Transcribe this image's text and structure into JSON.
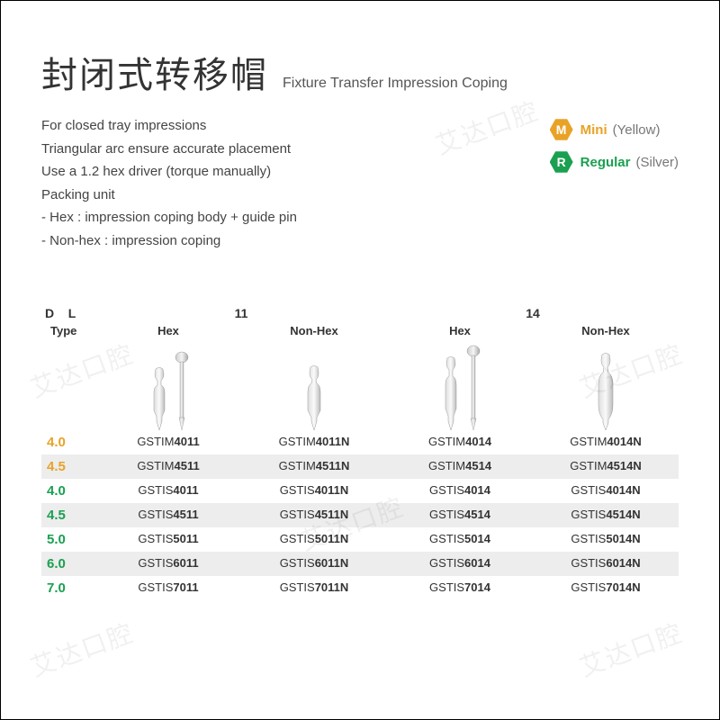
{
  "header": {
    "title_cn": "封闭式转移帽",
    "title_en": "Fixture Transfer Impression Coping"
  },
  "description": [
    "For closed tray impressions",
    "Triangular arc ensure accurate placement",
    "Use a 1.2 hex driver (torque manually)",
    "Packing unit",
    "- Hex : impression coping body + guide pin",
    "- Non-hex : impression coping"
  ],
  "legend": [
    {
      "letter": "M",
      "bg": "#e9a227",
      "label": "Mini",
      "label_color": "#e9a227",
      "note": "(Yellow)"
    },
    {
      "letter": "R",
      "bg": "#1aa050",
      "label": "Regular",
      "label_color": "#1aa050",
      "note": "(Silver)"
    }
  ],
  "table": {
    "d_label": "D",
    "l_label": "L",
    "type_label": "Type",
    "sizes": [
      "11",
      "14"
    ],
    "subtypes": [
      "Hex",
      "Non-Hex",
      "Hex",
      "Non-Hex"
    ],
    "rows": [
      {
        "d": "4.0",
        "color": "#e9a227",
        "stripe": false,
        "cells": [
          [
            "GSTIM",
            "4011"
          ],
          [
            "GSTIM",
            "4011N"
          ],
          [
            "GSTIM",
            "4014"
          ],
          [
            "GSTIM",
            "4014N"
          ]
        ]
      },
      {
        "d": "4.5",
        "color": "#e9a227",
        "stripe": true,
        "cells": [
          [
            "GSTIM",
            "4511"
          ],
          [
            "GSTIM",
            "4511N"
          ],
          [
            "GSTIM",
            "4514"
          ],
          [
            "GSTIM",
            "4514N"
          ]
        ]
      },
      {
        "d": "4.0",
        "color": "#1aa050",
        "stripe": false,
        "cells": [
          [
            "GSTIS",
            "4011"
          ],
          [
            "GSTIS",
            "4011N"
          ],
          [
            "GSTIS",
            "4014"
          ],
          [
            "GSTIS",
            "4014N"
          ]
        ]
      },
      {
        "d": "4.5",
        "color": "#1aa050",
        "stripe": true,
        "cells": [
          [
            "GSTIS",
            "4511"
          ],
          [
            "GSTIS",
            "4511N"
          ],
          [
            "GSTIS",
            "4514"
          ],
          [
            "GSTIS",
            "4514N"
          ]
        ]
      },
      {
        "d": "5.0",
        "color": "#1aa050",
        "stripe": false,
        "cells": [
          [
            "GSTIS",
            "5011"
          ],
          [
            "GSTIS",
            "5011N"
          ],
          [
            "GSTIS",
            "5014"
          ],
          [
            "GSTIS",
            "5014N"
          ]
        ]
      },
      {
        "d": "6.0",
        "color": "#1aa050",
        "stripe": true,
        "cells": [
          [
            "GSTIS",
            "6011"
          ],
          [
            "GSTIS",
            "6011N"
          ],
          [
            "GSTIS",
            "6014"
          ],
          [
            "GSTIS",
            "6014N"
          ]
        ]
      },
      {
        "d": "7.0",
        "color": "#1aa050",
        "stripe": false,
        "cells": [
          [
            "GSTIS",
            "7011"
          ],
          [
            "GSTIS",
            "7011N"
          ],
          [
            "GSTIS",
            "7014"
          ],
          [
            "GSTIS",
            "7014N"
          ]
        ]
      }
    ]
  },
  "watermark": "艾达口腔",
  "colors": {
    "text": "#333333",
    "muted": "#777777",
    "stripe": "#ededed",
    "bg": "#ffffff"
  }
}
